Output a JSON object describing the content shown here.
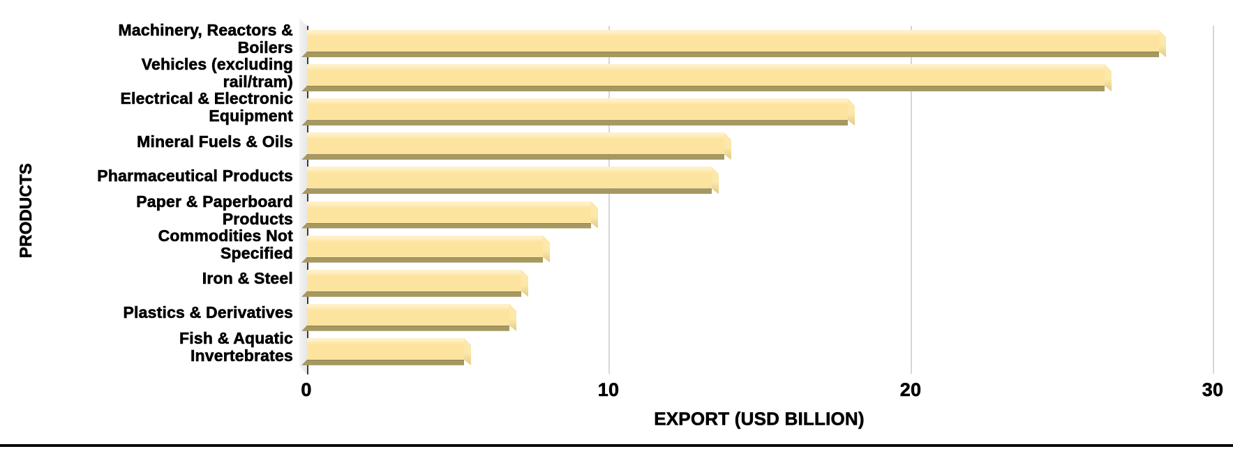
{
  "chart_data": {
    "type": "bar",
    "orientation": "horizontal",
    "title": "",
    "xlabel": "EXPORT (USD BILLION)",
    "ylabel": "PRODUCTS",
    "xlim": [
      0,
      30
    ],
    "xticks": [
      0,
      10,
      20,
      30
    ],
    "xtick_labels": [
      "0",
      "10",
      "20",
      "30"
    ],
    "grid": "vertical gridlines at x ticks",
    "legend": "none",
    "categories": [
      "Machinery, Reactors &\nBoilers",
      "Vehicles (excluding\nrail/tram)",
      "Electrical & Electronic\nEquipment",
      "Mineral Fuels & Oils",
      "Pharmaceutical Products",
      "Paper & Paperboard\nProducts",
      "Commodities Not\nSpecified",
      "Iron & Steel",
      "Plastics & Derivatives",
      "Fish & Aquatic\nInvertebrates"
    ],
    "values": [
      28.2,
      26.4,
      17.9,
      13.8,
      13.4,
      9.4,
      7.8,
      7.1,
      6.7,
      5.2
    ],
    "bar_style": "3d-beveled",
    "colors": {
      "bar_face": "#FDE49E",
      "bar_face_highlight": "#FEF0C8",
      "bar_bottom_shade": "#A69861",
      "bar_end_cap": "#FCE8AA",
      "bar_end_cap_dark": "#E0CA82",
      "wall": "#ECECEC",
      "axis_line": "#3A3A3A",
      "gridline": "#D6D6D6",
      "text": "#000000",
      "bottom_rule": "#0A0A0A"
    }
  }
}
